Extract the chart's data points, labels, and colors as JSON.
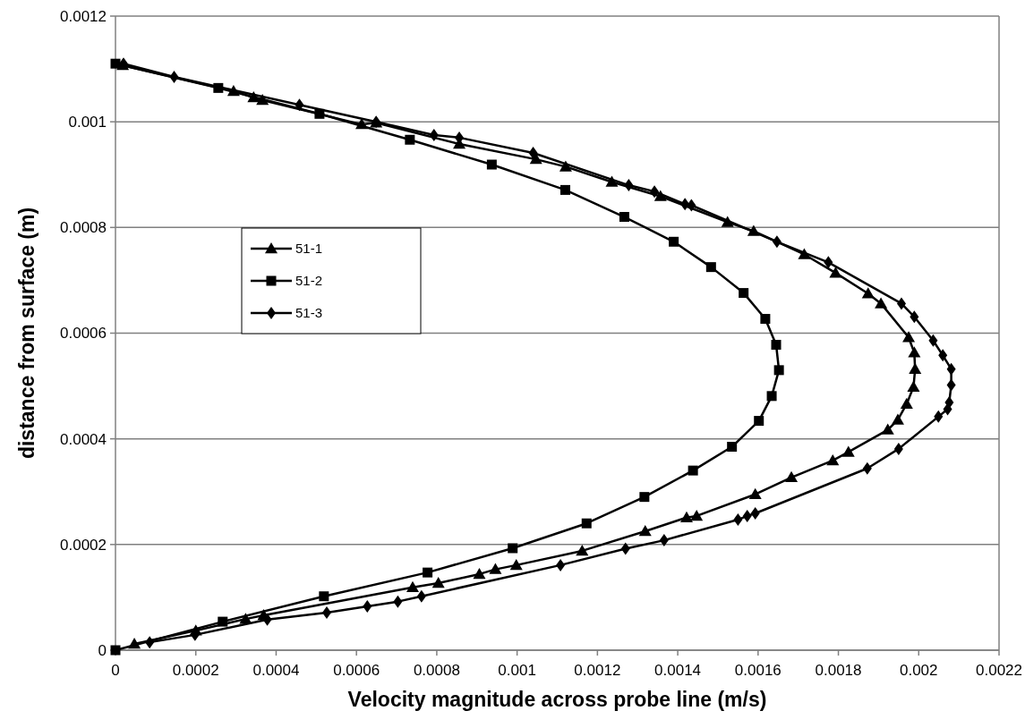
{
  "chart_data": {
    "type": "line",
    "xlabel": "Velocity magnitude across probe line (m/s)",
    "ylabel": "distance from surface (m)",
    "xlim": [
      0,
      0.0022
    ],
    "xticks": [
      0,
      0.0002,
      0.0004,
      0.0006,
      0.0008,
      0.001,
      0.0012,
      0.0014,
      0.0016,
      0.0018,
      0.002,
      0.0022
    ],
    "ylim": [
      0,
      0.0012
    ],
    "yticks": [
      0,
      0.0002,
      0.0004,
      0.0006,
      0.0008,
      0.001,
      0.0012
    ],
    "grid": "y",
    "legend": "left",
    "line_style": "solid",
    "series": [
      {
        "name": "51-1",
        "color": "#000000",
        "marker": "triangle",
        "x": [
          4.7e-05,
          0.0002,
          0.000324,
          0.000369,
          0.00074,
          0.000804,
          0.000906,
          0.000946,
          0.000998,
          0.001162,
          0.001319,
          0.001422,
          0.001447,
          0.001593,
          0.001683,
          0.001786,
          0.001825,
          0.001923,
          0.001948,
          0.00197,
          0.001987,
          0.001991,
          0.001989,
          0.001975,
          0.001906,
          0.001874,
          0.001793,
          0.001715,
          0.001589,
          0.001524,
          0.001357,
          0.001236,
          0.001121,
          0.001047,
          0.000856,
          0.000649,
          0.000613,
          0.000366,
          0.000344,
          0.000294,
          1.8e-05
        ],
        "values": [
          1.2e-05,
          3.7e-05,
          5.9e-05,
          6.6e-05,
          0.000119,
          0.000127,
          0.000144,
          0.000153,
          0.000161,
          0.000188,
          0.000225,
          0.000251,
          0.000254,
          0.000295,
          0.000327,
          0.000359,
          0.000375,
          0.000417,
          0.000436,
          0.000466,
          0.000498,
          0.000532,
          0.000563,
          0.000592,
          0.000656,
          0.000675,
          0.000714,
          0.000749,
          0.000793,
          0.00081,
          0.000859,
          0.000886,
          0.000915,
          0.000929,
          0.000958,
          0.000998,
          0.000995,
          0.001041,
          0.001046,
          0.001058,
          0.001107
        ]
      },
      {
        "name": "51-2",
        "color": "#000000",
        "marker": "square",
        "x": [
          0,
          0.000267,
          0.000519,
          0.000777,
          0.000989,
          0.001173,
          0.001317,
          0.001438,
          0.001535,
          0.001602,
          0.001634,
          0.001652,
          0.001645,
          0.001618,
          0.001564,
          0.001483,
          0.00139,
          0.001267,
          0.00112,
          0.000937,
          0.000733,
          0.000508,
          0.000256,
          0
        ],
        "values": [
          0,
          5.4e-05,
          0.000102,
          0.000147,
          0.000193,
          0.00024,
          0.00029,
          0.00034,
          0.000385,
          0.000434,
          0.000481,
          0.00053,
          0.000578,
          0.000627,
          0.000676,
          0.000725,
          0.000773,
          0.00082,
          0.000871,
          0.000919,
          0.000966,
          0.001015,
          0.001064,
          0.00111
        ]
      },
      {
        "name": "51-3",
        "color": "#000000",
        "marker": "diamond",
        "x": [
          8.5e-05,
          0.000198,
          0.000378,
          0.000526,
          0.000627,
          0.000703,
          0.000762,
          0.001108,
          0.00127,
          0.001366,
          0.00155,
          0.001573,
          0.001593,
          0.001872,
          0.00195,
          0.002049,
          0.002072,
          0.002076,
          0.002081,
          0.002081,
          0.00206,
          0.002036,
          0.001989,
          0.001957,
          0.001775,
          0.001647,
          0.001434,
          0.001418,
          0.001342,
          0.001278,
          0.00104,
          0.000856,
          0.000793,
          0.000649,
          0.000458,
          0.000146,
          2e-05
        ],
        "values": [
          1.5e-05,
          2.9e-05,
          5.8e-05,
          7.1e-05,
          8.3e-05,
          9.2e-05,
          0.000102,
          0.000161,
          0.000192,
          0.000208,
          0.000247,
          0.000254,
          0.000259,
          0.000344,
          0.000381,
          0.000442,
          0.000456,
          0.000469,
          0.000502,
          0.000532,
          0.000558,
          0.000586,
          0.000631,
          0.000656,
          0.000734,
          0.000773,
          0.000842,
          0.000844,
          0.000868,
          0.00088,
          0.000941,
          0.00097,
          0.000975,
          0.001,
          0.001032,
          0.001085,
          0.00111
        ]
      }
    ]
  }
}
